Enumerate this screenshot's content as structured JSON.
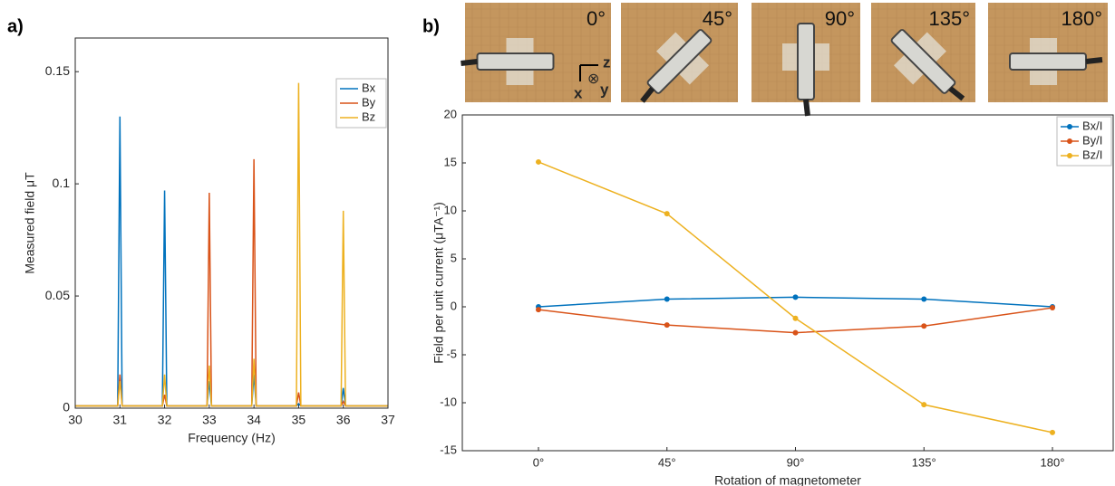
{
  "panel_labels": [
    "a)",
    "b)"
  ],
  "photos": [
    {
      "label": "0°"
    },
    {
      "label": "45°"
    },
    {
      "label": "90°"
    },
    {
      "label": "135°"
    },
    {
      "label": "180°"
    }
  ],
  "axes_icon": {
    "x": "x",
    "y": "y",
    "z": "z",
    "into": "⊗"
  },
  "chart_data": [
    {
      "type": "line",
      "xlabel": "Frequency (Hz)",
      "ylabel": "Measured field μT",
      "x": [
        30,
        30.5,
        30.95,
        31,
        31.05,
        31.5,
        31.95,
        32,
        32.05,
        32.5,
        32.95,
        33,
        33.05,
        33.5,
        33.95,
        34,
        34.05,
        34.5,
        34.95,
        35,
        35.05,
        35.5,
        35.95,
        36,
        36.05,
        36.5,
        37
      ],
      "series": [
        {
          "name": "Bx",
          "color": "#0072bd",
          "values": [
            0.001,
            0.001,
            0.001,
            0.13,
            0.001,
            0.001,
            0.001,
            0.097,
            0.001,
            0.001,
            0.001,
            0.012,
            0.001,
            0.001,
            0.001,
            0.015,
            0.001,
            0.001,
            0.001,
            0.002,
            0.001,
            0.001,
            0.001,
            0.009,
            0.001,
            0.001,
            0.001
          ]
        },
        {
          "name": "By",
          "color": "#d95319",
          "values": [
            0.001,
            0.001,
            0.001,
            0.015,
            0.001,
            0.001,
            0.001,
            0.006,
            0.001,
            0.001,
            0.001,
            0.096,
            0.001,
            0.001,
            0.001,
            0.111,
            0.001,
            0.001,
            0.001,
            0.007,
            0.001,
            0.001,
            0.001,
            0.003,
            0.001,
            0.001,
            0.001
          ]
        },
        {
          "name": "Bz",
          "color": "#edb120",
          "values": [
            0.001,
            0.001,
            0.001,
            0.012,
            0.001,
            0.001,
            0.001,
            0.015,
            0.001,
            0.001,
            0.001,
            0.019,
            0.001,
            0.001,
            0.001,
            0.022,
            0.001,
            0.001,
            0.001,
            0.145,
            0.001,
            0.001,
            0.001,
            0.088,
            0.001,
            0.001,
            0.001
          ]
        }
      ],
      "xlim": [
        30,
        37
      ],
      "xticks": [
        30,
        31,
        32,
        33,
        34,
        35,
        36,
        37
      ],
      "ylim": [
        0,
        0.165
      ],
      "yticks": [
        0,
        0.05,
        0.1,
        0.15
      ],
      "legend": "top-right"
    },
    {
      "type": "line",
      "xlabel": "Rotation of magnetometer",
      "ylabel": "Field per unit current (μTA⁻¹)",
      "categories": [
        "0°",
        "45°",
        "90°",
        "135°",
        "180°"
      ],
      "series": [
        {
          "name": "Bx/I",
          "color": "#0072bd",
          "values": [
            0,
            0.8,
            1.0,
            0.8,
            0
          ]
        },
        {
          "name": "By/I",
          "color": "#d95319",
          "values": [
            -0.3,
            -1.9,
            -2.7,
            -2.0,
            -0.1
          ]
        },
        {
          "name": "Bz/I",
          "color": "#edb120",
          "values": [
            15.1,
            9.7,
            -1.2,
            -10.2,
            -13.1
          ]
        }
      ],
      "ylim": [
        -15,
        20
      ],
      "yticks": [
        -15,
        -10,
        -5,
        0,
        5,
        10,
        15,
        20
      ],
      "markers": true,
      "legend": "top-right"
    }
  ]
}
